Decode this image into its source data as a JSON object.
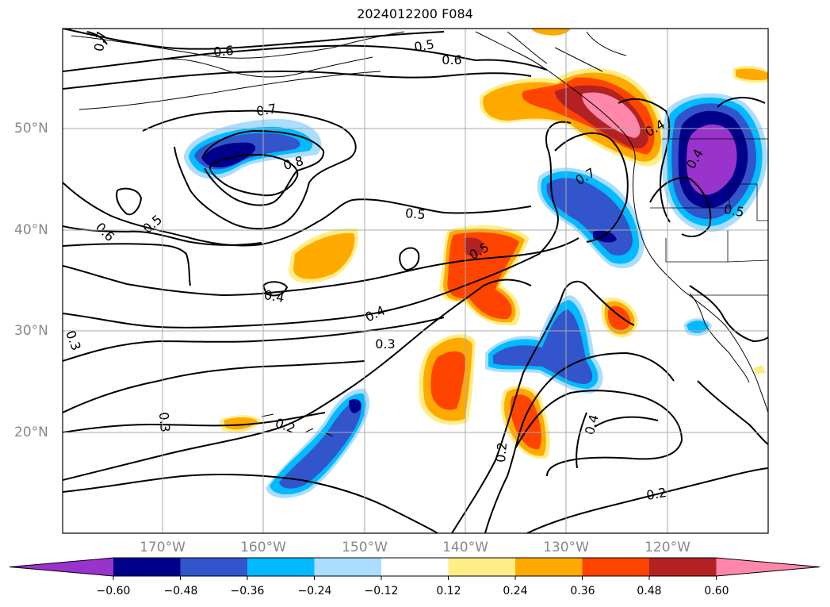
{
  "title": "2024012200 F084",
  "lat_labels": [
    "50°N",
    "40°N",
    "30°N",
    "20°N"
  ],
  "lon_labels": [
    "170°W",
    "160°W",
    "150°W",
    "140°W",
    "130°W",
    "120°W"
  ],
  "colorbar": {
    "colors": [
      "#9933cc",
      "#00008b",
      "#3355cc",
      "#00bbff",
      "#aaddff",
      "#ffffff",
      "#ffee88",
      "#ffaa00",
      "#ff4400",
      "#b22222",
      "#ff88aa"
    ],
    "ticks": [
      "−0.60",
      "−0.48",
      "−0.36",
      "−0.24",
      "−0.12",
      "0.12",
      "0.24",
      "0.36",
      "0.48",
      "0.60"
    ]
  },
  "contour_labels": [
    {
      "text": "0.7",
      "rot": -80
    },
    {
      "text": "0.6",
      "rot": -5
    },
    {
      "text": "0.5",
      "rot": -10
    },
    {
      "text": "0.6",
      "rot": 0
    },
    {
      "text": "0.7",
      "rot": -10
    },
    {
      "text": "0.8",
      "rot": -15
    },
    {
      "text": "0.5",
      "rot": 5
    },
    {
      "text": "0.6",
      "rot": 45
    },
    {
      "text": "0.5",
      "rot": -40
    },
    {
      "text": "0.5",
      "rot": -30
    },
    {
      "text": "0.4",
      "rot": 10
    },
    {
      "text": "0.4",
      "rot": -25
    },
    {
      "text": "0.3",
      "rot": 0
    },
    {
      "text": "0.3",
      "rot": 70
    },
    {
      "text": "0.3",
      "rot": 85
    },
    {
      "text": "0.2",
      "rot": 20
    },
    {
      "text": "0.2",
      "rot": -85
    },
    {
      "text": "0.4",
      "rot": -75
    },
    {
      "text": "0.2",
      "rot": -10
    },
    {
      "text": "0.7",
      "rot": -30
    },
    {
      "text": "0.4",
      "rot": -30
    },
    {
      "text": "0.4",
      "rot": -60
    },
    {
      "text": "0.5",
      "rot": 10
    }
  ]
}
